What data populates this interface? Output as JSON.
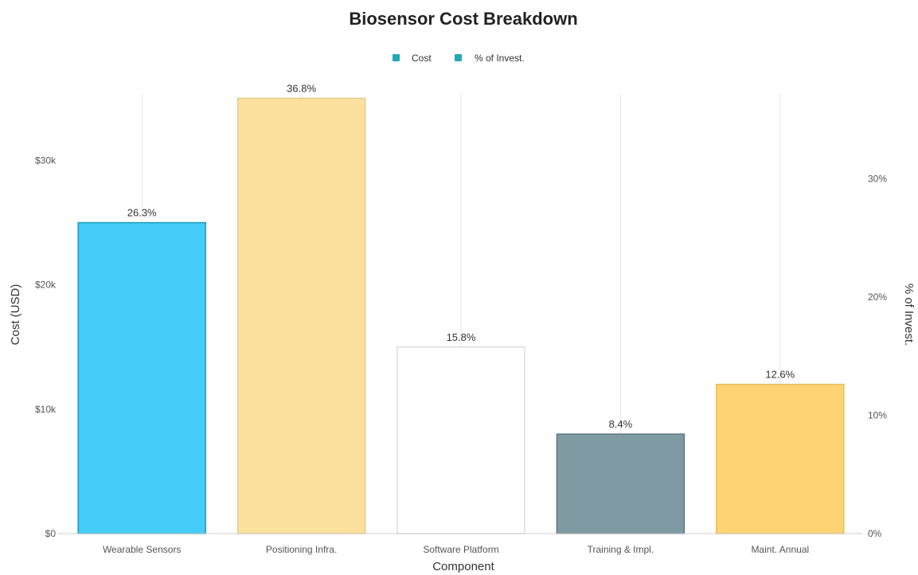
{
  "chart_data": {
    "type": "bar",
    "title": "Biosensor Cost Breakdown",
    "xlabel": "Component",
    "ylabel": "Cost (USD)",
    "y2label": "% of Invest.",
    "categories": [
      "Wearable Sensors",
      "Positioning Infra.",
      "Software Platform",
      "Training & Impl.",
      "Maint. Annual"
    ],
    "series": [
      {
        "name": "Cost",
        "values": [
          25000,
          35000,
          15000,
          8000,
          12000
        ]
      },
      {
        "name": "% of Invest.",
        "values": [
          26.3,
          36.8,
          15.8,
          8.4,
          12.6
        ]
      }
    ],
    "data_labels": [
      "26.3%",
      "36.8%",
      "15.8%",
      "8.4%",
      "12.6%"
    ],
    "bar_colors": [
      "#44cdf9",
      "#fce09d",
      "#ffffff",
      "#7f9aa2",
      "#fed374"
    ],
    "bar_stroke_colors": [
      "#1a9cb5",
      "#e7cb8c",
      "#dddddd",
      "#5f7880",
      "#e8bd60"
    ],
    "legend_swatch_color": "#21a9b8",
    "ylim": [
      0,
      36500
    ],
    "y_ticks": [
      0,
      10000,
      20000,
      30000
    ],
    "y_tick_labels": [
      "$0",
      "$10k",
      "$20k",
      "$30k"
    ],
    "y2lim": [
      0,
      38.4
    ],
    "y2_ticks": [
      0,
      10,
      20,
      30
    ],
    "y2_tick_labels": [
      "0%",
      "10%",
      "20%",
      "30%"
    ],
    "legend_position": "top-center",
    "grid": "vertical"
  }
}
